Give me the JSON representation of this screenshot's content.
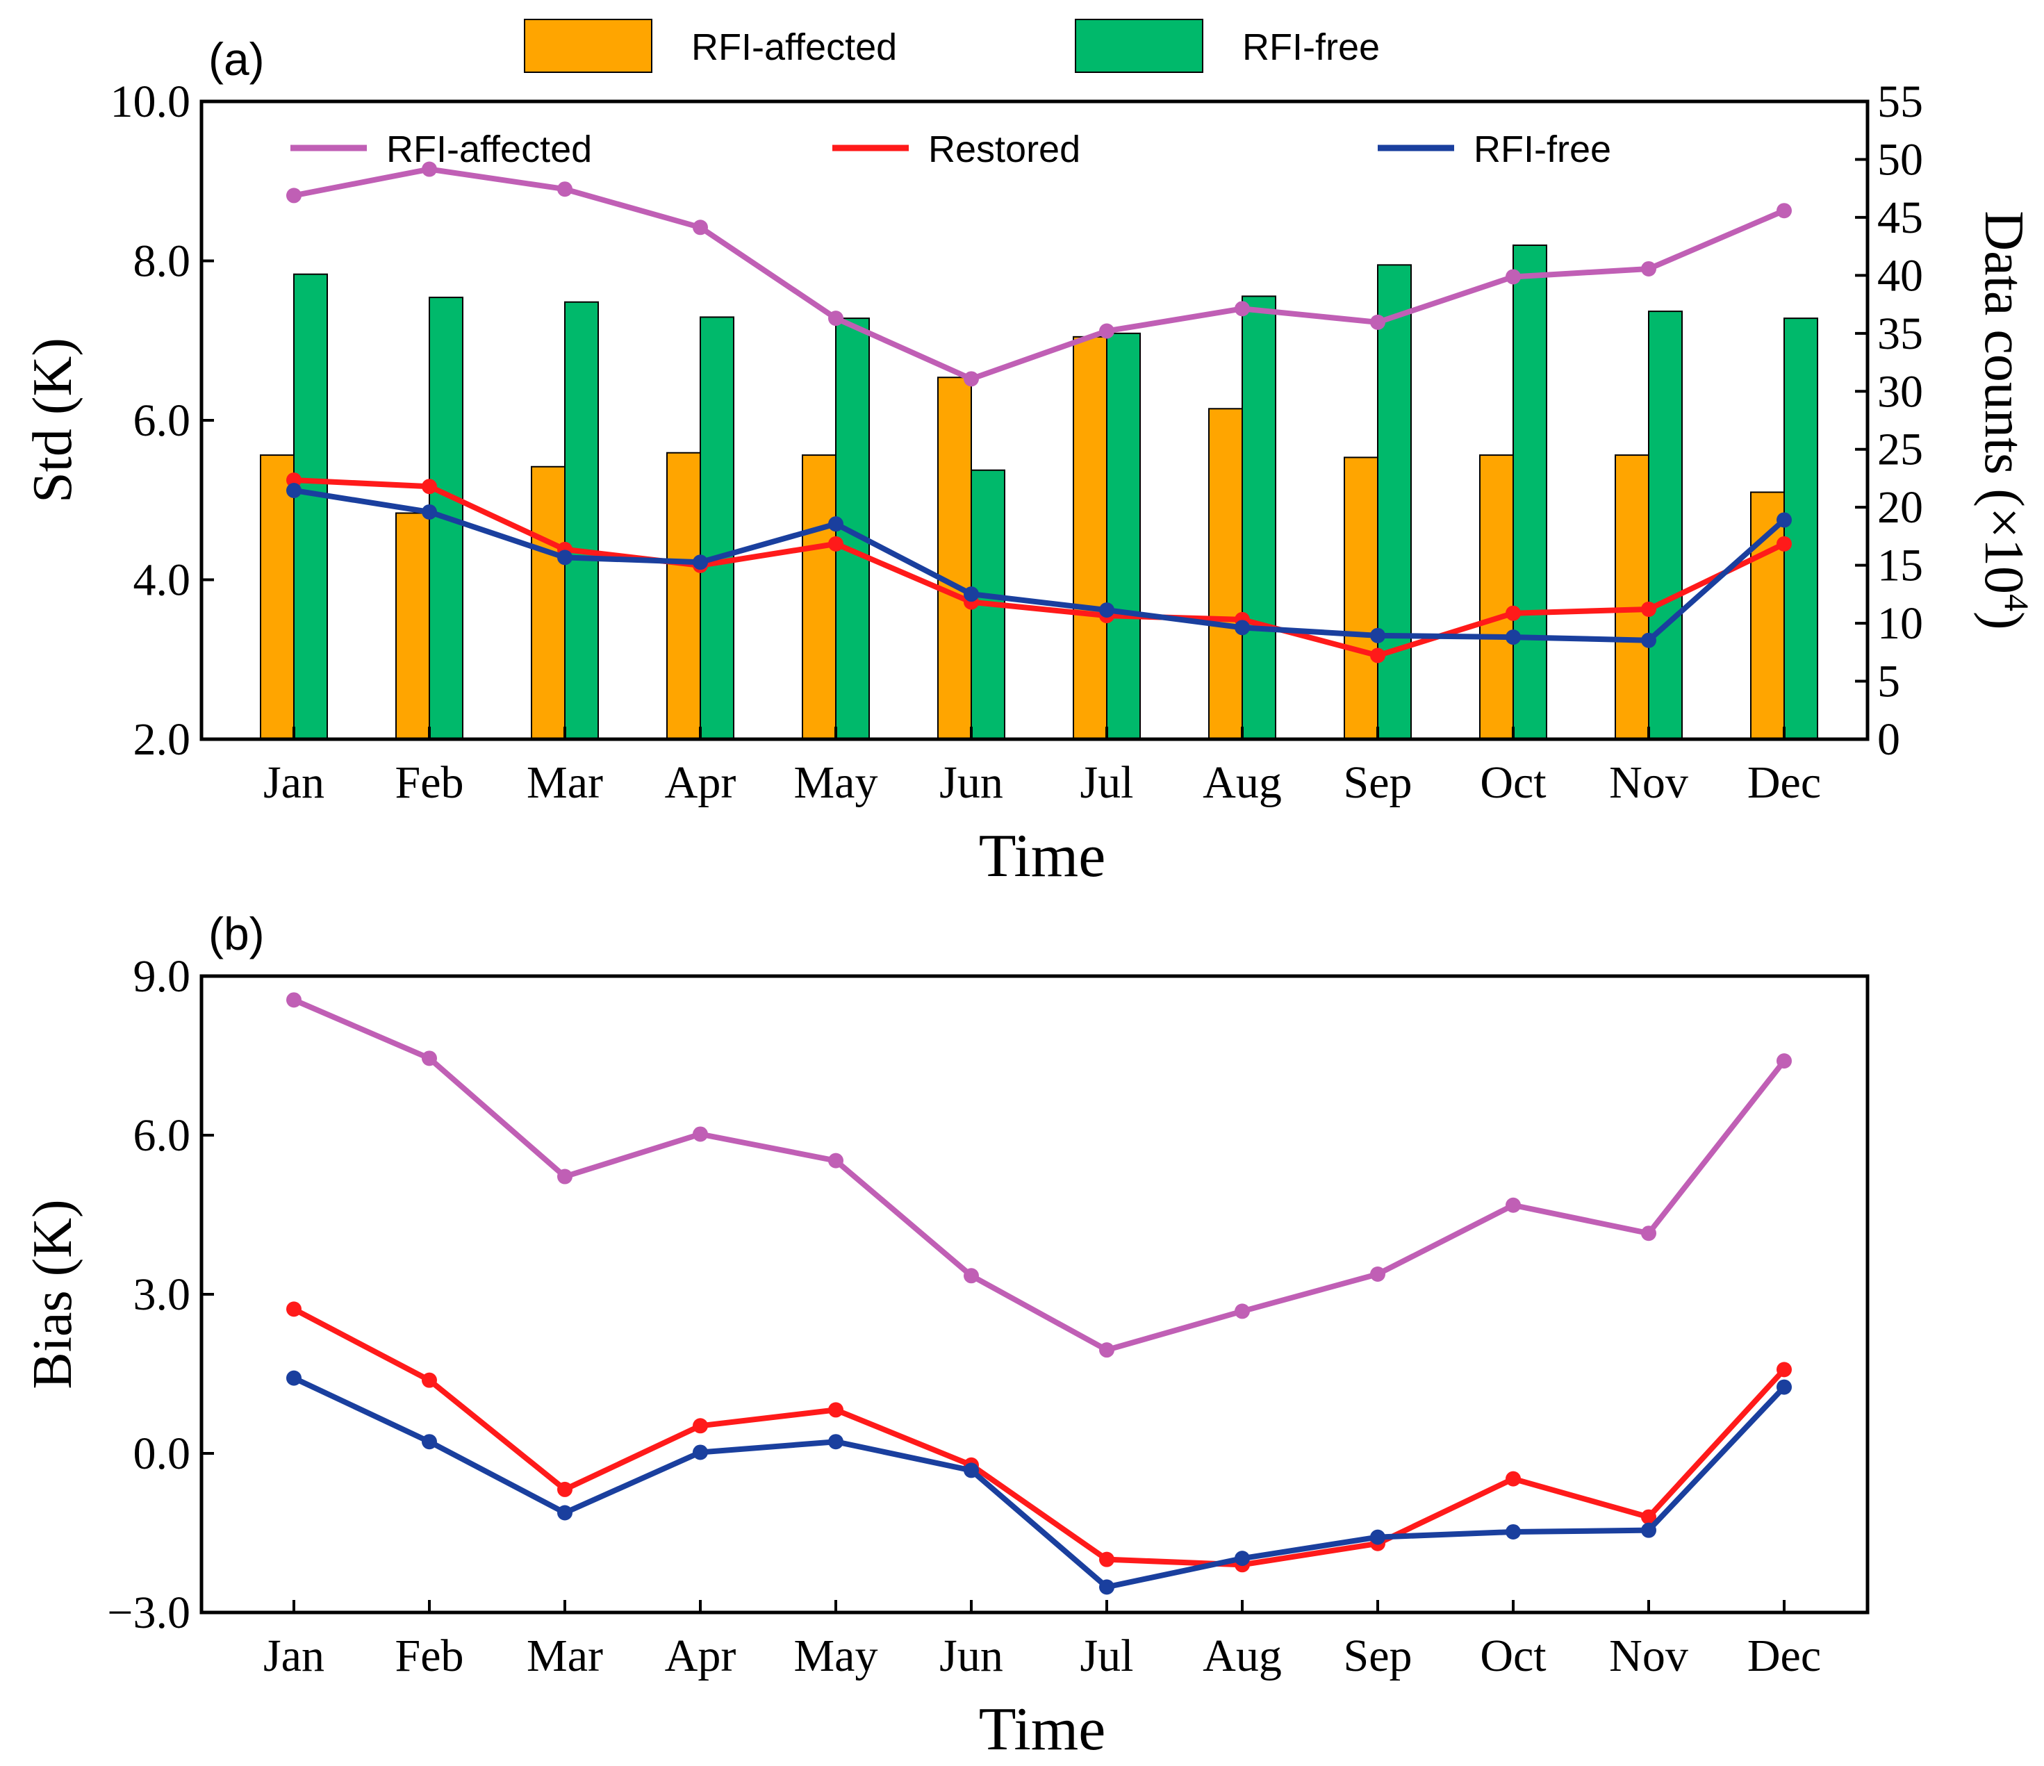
{
  "chart_data": [
    {
      "panel_label": "(a)",
      "type": "bar+line",
      "categories": [
        "Jan",
        "Feb",
        "Mar",
        "Apr",
        "May",
        "Jun",
        "Jul",
        "Aug",
        "Sep",
        "Oct",
        "Nov",
        "Dec"
      ],
      "xlabel": "Time",
      "ylabel": "Std (K)",
      "ylim": [
        2.0,
        10.0
      ],
      "yticks": [
        "2.0",
        "4.0",
        "6.0",
        "8.0",
        "10.0"
      ],
      "ylabel_right_main": "Data counts (×10",
      "ylabel_right_exp": "4",
      "ylabel_right_close": ")",
      "ylim_right": [
        0,
        55
      ],
      "yticks_right": [
        "0",
        "5",
        "10",
        "15",
        "20",
        "25",
        "30",
        "35",
        "40",
        "45",
        "50",
        "55"
      ],
      "bar_series": [
        {
          "name": "RFI-affected",
          "color": "#FFA500",
          "values": [
            24.5,
            19.5,
            23.5,
            24.7,
            24.5,
            31.2,
            34.7,
            28.5,
            24.3,
            24.5,
            24.5,
            21.3
          ]
        },
        {
          "name": "RFI-free",
          "color": "#00B96B",
          "values": [
            40.1,
            38.1,
            37.7,
            36.4,
            36.3,
            23.2,
            35.0,
            38.2,
            40.9,
            42.6,
            36.9,
            36.3
          ]
        }
      ],
      "line_series": [
        {
          "name": "RFI-affected",
          "color": "#C05FB5",
          "values": [
            8.82,
            9.15,
            8.9,
            8.42,
            7.28,
            6.52,
            7.12,
            7.4,
            7.23,
            7.8,
            7.9,
            8.63
          ]
        },
        {
          "name": "Restored",
          "color": "#FF1A1A",
          "values": [
            5.25,
            5.17,
            4.38,
            4.18,
            4.45,
            3.72,
            3.55,
            3.5,
            3.05,
            3.58,
            3.63,
            4.45
          ]
        },
        {
          "name": "RFI-free",
          "color": "#1A3F9E",
          "values": [
            5.12,
            4.85,
            4.28,
            4.22,
            4.7,
            3.82,
            3.62,
            3.4,
            3.3,
            3.28,
            3.24,
            4.75
          ]
        }
      ]
    },
    {
      "panel_label": "(b)",
      "type": "line",
      "categories": [
        "Jan",
        "Feb",
        "Mar",
        "Apr",
        "May",
        "Jun",
        "Jul",
        "Aug",
        "Sep",
        "Oct",
        "Nov",
        "Dec"
      ],
      "xlabel": "Time",
      "ylabel": "Bias (K)",
      "ylim": [
        -3.0,
        9.0
      ],
      "yticks": [
        "−3.0",
        "0.0",
        "3.0",
        "6.0",
        "9.0"
      ],
      "line_series": [
        {
          "name": "RFI-affected",
          "color": "#C05FB5",
          "values": [
            8.55,
            7.45,
            5.22,
            6.02,
            5.52,
            3.35,
            1.95,
            2.68,
            3.38,
            4.68,
            4.15,
            7.4
          ]
        },
        {
          "name": "Restored",
          "color": "#FF1A1A",
          "values": [
            2.72,
            1.38,
            -0.68,
            0.52,
            0.82,
            -0.22,
            -2.0,
            -2.1,
            -1.7,
            -0.48,
            -1.2,
            1.58
          ]
        },
        {
          "name": "RFI-free",
          "color": "#1A3F9E",
          "values": [
            1.42,
            0.22,
            -1.12,
            0.02,
            0.22,
            -0.32,
            -2.52,
            -1.98,
            -1.58,
            -1.48,
            -1.45,
            1.25
          ]
        }
      ]
    }
  ]
}
